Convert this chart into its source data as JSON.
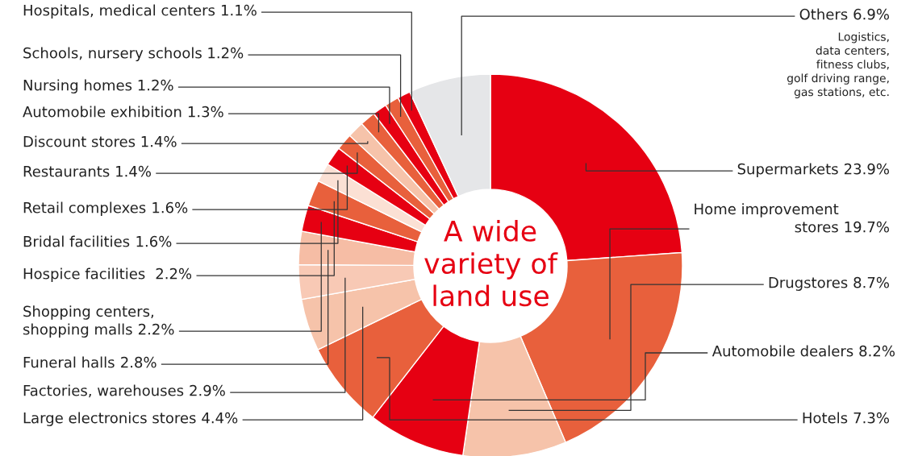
{
  "chart_data": {
    "type": "donut",
    "title": "A wide\nvariety of\nland use",
    "categories": [
      "Supermarkets",
      "Home improvement\nstores",
      "Drugstores",
      "Automobile dealers",
      "Hotels",
      "Large electronics stores",
      "Factories, warehouses",
      "Funeral halls",
      "Shopping centers,\nshopping malls",
      "Hospice facilities ",
      "Bridal facilities",
      "Retail complexes",
      "Restaurants",
      "Discount stores",
      "Automobile exhibition",
      "Nursing homes",
      "Schools, nursery schools",
      "Hospitals, medical centers",
      "Others"
    ],
    "values": [
      23.9,
      19.7,
      8.7,
      8.2,
      7.3,
      4.4,
      2.9,
      2.8,
      2.2,
      2.2,
      1.6,
      1.6,
      1.4,
      1.4,
      1.3,
      1.2,
      1.2,
      1.1,
      6.9
    ],
    "colors": [
      "#e60012",
      "#e8603c",
      "#f6c3aa",
      "#e60012",
      "#e8603c",
      "#f6c3aa",
      "#f8c9b5",
      "#f6bda5",
      "#e60012",
      "#e8603c",
      "#fbe0d4",
      "#e60012",
      "#e8603c",
      "#f6c3aa",
      "#e8603c",
      "#e60012",
      "#e8603c",
      "#e60012",
      "#e5e6e8"
    ],
    "value_labels": [
      "23.9%",
      "19.7%",
      "8.7%",
      "8.2%",
      "7.3%",
      "4.4%",
      "2.9%",
      "2.8%",
      "2.2%",
      "2.2%",
      "1.6%",
      "1.6%",
      "1.4%",
      "1.4%",
      "1.3%",
      "1.2%",
      "1.2%",
      "1.1%",
      "6.9%"
    ],
    "annotations": [
      "Logistics,\ndata centers,\nfitness clubs,\ngolf driving range,\ngas stations, etc."
    ]
  }
}
